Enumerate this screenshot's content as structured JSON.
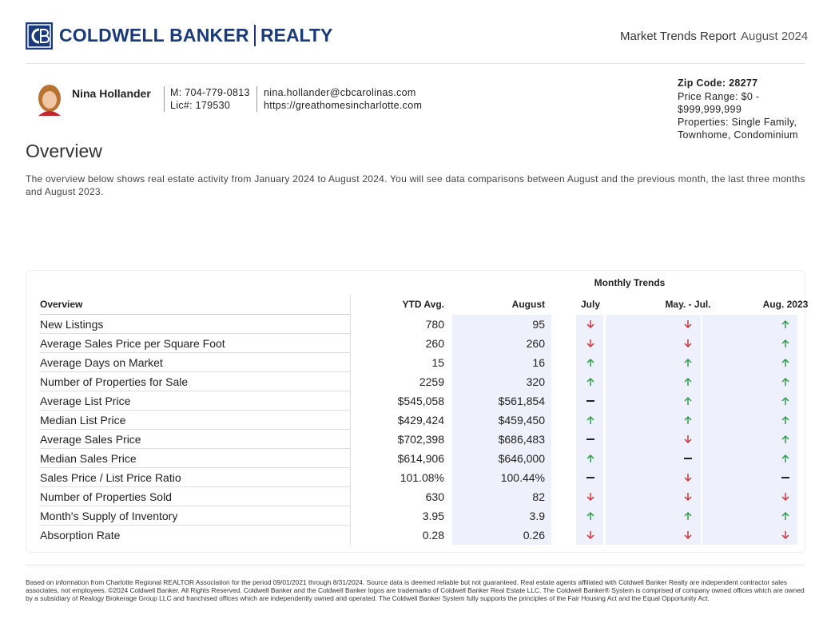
{
  "header": {
    "brand": "COLDWELL BANKER",
    "brand_suffix": "REALTY",
    "report": "Market Trends Report",
    "period": "August 2024"
  },
  "agent": {
    "name": "Nina Hollander",
    "phone": "M: 704-779-0813",
    "license": "Lic#: 179530",
    "email": "nina.hollander@cbcarolinas.com",
    "website": "https://greathomesincharlotte.com"
  },
  "filters": {
    "zip": "Zip Code: 28277",
    "price": "Price Range: $0 - $999,999,999",
    "properties": "Properties: Single Family, Townhome, Condominium"
  },
  "overview": {
    "title": "Overview",
    "text": "The overview below shows real estate activity from January 2024 to August 2024. You will see data comparisons between August and the previous month, the last three months and August 2023."
  },
  "table": {
    "group_header": "Monthly Trends",
    "columns": [
      "Overview",
      "YTD Avg.",
      "August",
      "July",
      "May. - Jul.",
      "Aug. 2023"
    ],
    "rows": [
      {
        "label": "New Listings",
        "ytd": "780",
        "month": "95",
        "trends": [
          "down",
          "down",
          "up"
        ]
      },
      {
        "label": "Average Sales Price per Square Foot",
        "ytd": "260",
        "month": "260",
        "trends": [
          "down",
          "down",
          "up"
        ]
      },
      {
        "label": "Average Days on Market",
        "ytd": "15",
        "month": "16",
        "trends": [
          "up",
          "up",
          "up"
        ]
      },
      {
        "label": "Number of Properties for Sale",
        "ytd": "2259",
        "month": "320",
        "trends": [
          "up",
          "up",
          "up"
        ]
      },
      {
        "label": "Average List Price",
        "ytd": "$545,058",
        "month": "$561,854",
        "trends": [
          "flat",
          "up",
          "up"
        ]
      },
      {
        "label": "Median List Price",
        "ytd": "$429,424",
        "month": "$459,450",
        "trends": [
          "up",
          "up",
          "up"
        ]
      },
      {
        "label": "Average Sales Price",
        "ytd": "$702,398",
        "month": "$686,483",
        "trends": [
          "flat",
          "down",
          "up"
        ]
      },
      {
        "label": "Median Sales Price",
        "ytd": "$614,906",
        "month": "$646,000",
        "trends": [
          "up",
          "flat",
          "up"
        ]
      },
      {
        "label": "Sales Price / List Price Ratio",
        "ytd": "101.08%",
        "month": "100.44%",
        "trends": [
          "flat",
          "down",
          "flat"
        ]
      },
      {
        "label": "Number of Properties Sold",
        "ytd": "630",
        "month": "82",
        "trends": [
          "down",
          "down",
          "down"
        ]
      },
      {
        "label": "Month's Supply of Inventory",
        "ytd": "3.95",
        "month": "3.9",
        "trends": [
          "up",
          "up",
          "up"
        ]
      },
      {
        "label": "Absorption Rate",
        "ytd": "0.28",
        "month": "0.26",
        "trends": [
          "down",
          "down",
          "down"
        ]
      }
    ]
  },
  "footer": "Based on information from Charlotte Regional REALTOR Association for the period 09/01/2021 through 8/31/2024. Source data is deemed reliable but not guaranteed. Real estate agents affiliated with Coldwell Banker Realty are independent contractor sales associates, not employees. ©2024 Coldwell Banker. All Rights Reserved. Coldwell Banker and the Coldwell Banker logos are trademarks of Coldwell Banker Real Estate LLC. The Coldwell Banker® System is comprised of company owned offices which are owned by a subsidiary of Realogy Brokerage Group LLC and franchised offices which are independently owned and operated. The Coldwell Banker System fully supports the principles of the Fair Housing Act and the Equal Opportunity Act."
}
